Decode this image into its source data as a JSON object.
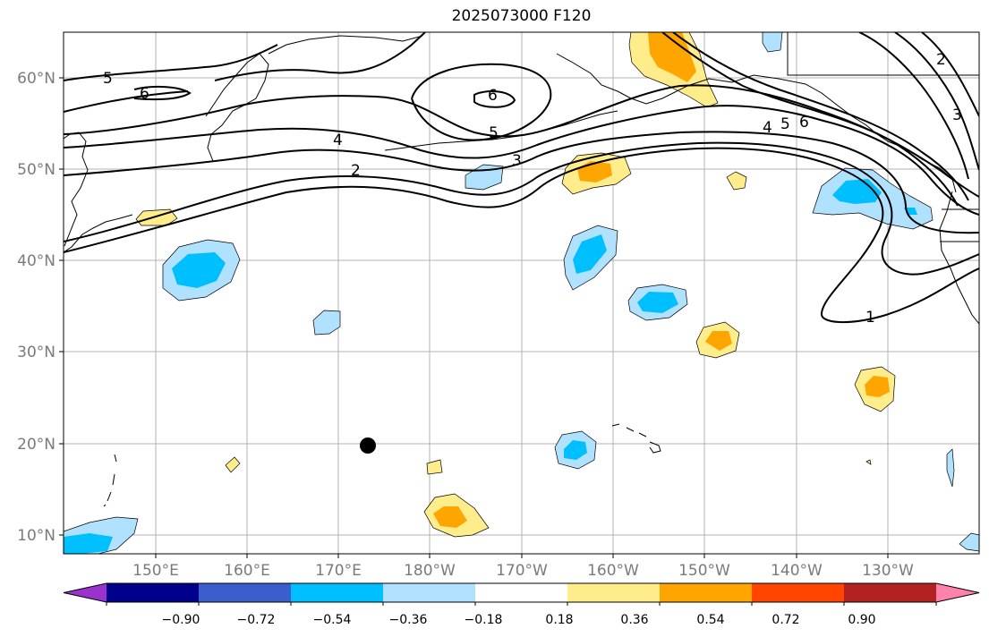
{
  "title": "2025073000 F120",
  "lat_labels": [
    "60°N",
    "50°N",
    "40°N",
    "30°N",
    "20°N",
    "10°N"
  ],
  "lon_labels": [
    "150°E",
    "160°E",
    "170°E",
    "180°W",
    "170°W",
    "160°W",
    "150°W",
    "140°W",
    "130°W"
  ],
  "contour_labels": [
    "1",
    "2",
    "3",
    "4",
    "5",
    "6",
    "4",
    "5",
    "6",
    "2",
    "3",
    "5",
    "6"
  ],
  "colorbar": {
    "colors": [
      "#9a32cd",
      "#00008b",
      "#3a5fcd",
      "#00bfff",
      "#b0e2ff",
      "#ffffff",
      "#ffec8b",
      "#ffa500",
      "#ff4500",
      "#b22222",
      "#ff82ab"
    ],
    "labels": [
      "−0.90",
      "−0.72",
      "−0.54",
      "−0.36",
      "−0.18",
      "0.18",
      "0.36",
      "0.54",
      "0.72",
      "0.90"
    ]
  },
  "marker": "black-dot"
}
